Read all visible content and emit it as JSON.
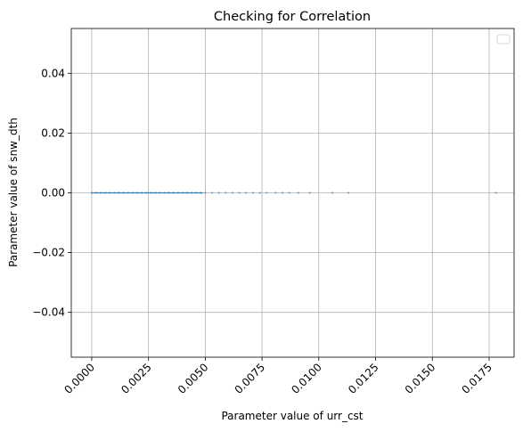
{
  "chart_data": {
    "type": "scatter",
    "title": "Checking for Correlation",
    "xlabel": "Parameter value of urr_cst",
    "ylabel": "Parameter value of snw_dth",
    "xlim": [
      -0.0009,
      0.0186
    ],
    "ylim": [
      -0.055,
      0.055
    ],
    "xticks": [
      0.0,
      0.0025,
      0.005,
      0.0075,
      0.01,
      0.0125,
      0.015,
      0.0175
    ],
    "xtick_labels": [
      "0.0000",
      "0.0025",
      "0.0050",
      "0.0075",
      "0.0100",
      "0.0125",
      "0.0150",
      "0.0175"
    ],
    "yticks": [
      -0.04,
      -0.02,
      0.0,
      0.02,
      0.04
    ],
    "ytick_labels": [
      "−0.04",
      "−0.02",
      "0.00",
      "0.02",
      "0.04"
    ],
    "grid": true,
    "legend": "top-right",
    "points": {
      "x": [
        0.0,
        0.0002,
        0.0004,
        0.0006,
        0.0008,
        0.001,
        0.0012,
        0.0014,
        0.0016,
        0.0018,
        0.002,
        0.0022,
        0.0024,
        0.0026,
        0.0028,
        0.003,
        0.0032,
        0.0034,
        0.0036,
        0.0038,
        0.004,
        0.0042,
        0.0044,
        0.0046,
        0.0048,
        0.005,
        0.0053,
        0.0056,
        0.0059,
        0.0062,
        0.0065,
        0.0068,
        0.0071,
        0.0074,
        0.0077,
        0.0081,
        0.0084,
        0.0087,
        0.0091,
        0.0096,
        0.0106,
        0.0113,
        0.0178
      ],
      "y": [
        0,
        0,
        0,
        0,
        0,
        0,
        0,
        0,
        0,
        0,
        0,
        0,
        0,
        0,
        0,
        0,
        0,
        0,
        0,
        0,
        0,
        0,
        0,
        0,
        0,
        0,
        0,
        0,
        0,
        0,
        0,
        0,
        0,
        0,
        0,
        0,
        0,
        0,
        0,
        0,
        0,
        0,
        0
      ]
    },
    "colors": {
      "points": "#1f77b4",
      "grid": "#b0b0b0"
    }
  }
}
